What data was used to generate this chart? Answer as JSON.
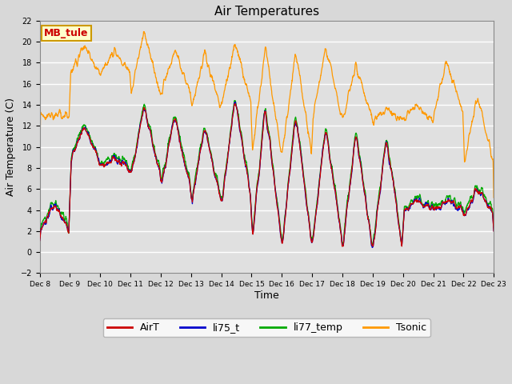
{
  "title": "Air Temperatures",
  "xlabel": "Time",
  "ylabel": "Air Temperature (C)",
  "ylim": [
    -2,
    22
  ],
  "yticks": [
    -2,
    0,
    2,
    4,
    6,
    8,
    10,
    12,
    14,
    16,
    18,
    20,
    22
  ],
  "series_colors": {
    "AirT": "#cc0000",
    "li75_t": "#0000cc",
    "li77_temp": "#00aa00",
    "Tsonic": "#ff9900"
  },
  "legend_labels": [
    "AirT",
    "li75_t",
    "li77_temp",
    "Tsonic"
  ],
  "annotation_text": "MB_tule",
  "annotation_color": "#cc0000",
  "annotation_bg": "#ffffcc",
  "annotation_border": "#cc9900",
  "fig_bg_color": "#d8d8d8",
  "plot_bg_color": "#e0e0e0",
  "grid_color": "#ffffff",
  "title_fontsize": 11,
  "axis_fontsize": 9,
  "tick_fontsize": 7,
  "legend_fontsize": 9,
  "n_points": 2160,
  "n_days": 15
}
